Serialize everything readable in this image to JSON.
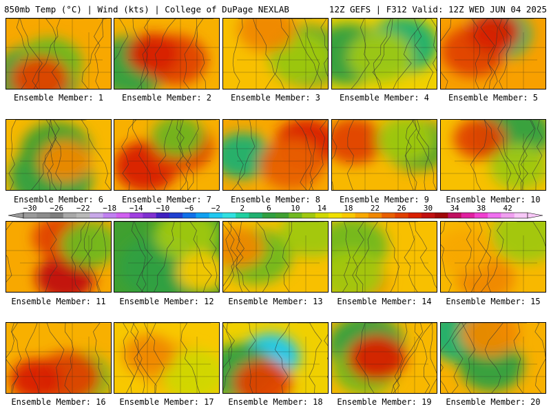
{
  "header": {
    "left": "850mb Temp (°C) | Wind (kts) | College of DuPage NEXLAB",
    "right": "12Z GEFS | F312 Valid: 12Z WED JUN 04 2025"
  },
  "colorbar": {
    "labels": [
      "-30",
      "-26",
      "-22",
      "-18",
      "-14",
      "-10",
      "-6",
      "-2",
      "2",
      "6",
      "10",
      "14",
      "18",
      "22",
      "26",
      "30",
      "34",
      "38",
      "42"
    ],
    "colors": [
      "#9a9a9a",
      "#8c8c8c",
      "#7e7e7e",
      "#a8a8a8",
      "#b8b8b8",
      "#c8a8e8",
      "#c080f0",
      "#d060f0",
      "#a040e0",
      "#8030d0",
      "#4020c0",
      "#2040d0",
      "#1070e8",
      "#10a0f0",
      "#20c8f0",
      "#30e0e0",
      "#20d0a0",
      "#20b070",
      "#30a040",
      "#40a030",
      "#70b820",
      "#a0c810",
      "#d0d800",
      "#f0e000",
      "#f8c800",
      "#f8a800",
      "#f08800",
      "#e86000",
      "#e04000",
      "#d82000",
      "#c01010",
      "#a00808",
      "#c01060",
      "#e020a0",
      "#f040d0",
      "#f070f0",
      "#f0a0f0",
      "#f8c8f8"
    ]
  },
  "panels": [
    {
      "caption": "Ensemble Member: 1",
      "base": "#f8a800",
      "blobs": [
        {
          "c": "#30a040",
          "r": 0.9
        },
        {
          "c": "#70b820",
          "r": 0.6
        },
        {
          "c": "#e04000",
          "r": 0.5
        }
      ]
    },
    {
      "caption": "Ensemble Member: 2",
      "base": "#f8b000",
      "blobs": [
        {
          "c": "#30a040",
          "r": 0.8
        },
        {
          "c": "#e04000",
          "r": 0.6
        },
        {
          "c": "#d82000",
          "r": 0.4
        }
      ]
    },
    {
      "caption": "Ensemble Member: 3",
      "base": "#f8c000",
      "blobs": [
        {
          "c": "#40a030",
          "r": 0.8
        },
        {
          "c": "#a0c810",
          "r": 0.6
        },
        {
          "c": "#f08800",
          "r": 0.5
        }
      ]
    },
    {
      "caption": "Ensemble Member: 4",
      "base": "#f0d000",
      "blobs": [
        {
          "c": "#20b070",
          "r": 0.7
        },
        {
          "c": "#30a040",
          "r": 0.8
        },
        {
          "c": "#a0c810",
          "r": 0.6
        }
      ]
    },
    {
      "caption": "Ensemble Member: 5",
      "base": "#f8a000",
      "blobs": [
        {
          "c": "#20b070",
          "r": 0.6
        },
        {
          "c": "#e04000",
          "r": 0.6
        },
        {
          "c": "#d82000",
          "r": 0.4
        }
      ]
    },
    {
      "caption": "Ensemble Member: 6",
      "base": "#f8b800",
      "blobs": [
        {
          "c": "#30a040",
          "r": 0.9
        },
        {
          "c": "#40a030",
          "r": 0.7
        },
        {
          "c": "#f08800",
          "r": 0.4
        }
      ]
    },
    {
      "caption": "Ensemble Member: 7",
      "base": "#f8b000",
      "blobs": [
        {
          "c": "#d82000",
          "r": 0.6
        },
        {
          "c": "#e04000",
          "r": 0.6
        },
        {
          "c": "#70b820",
          "r": 0.4
        }
      ]
    },
    {
      "caption": "Ensemble Member: 8",
      "base": "#f8a800",
      "blobs": [
        {
          "c": "#20b070",
          "r": 0.5
        },
        {
          "c": "#d82000",
          "r": 0.6
        },
        {
          "c": "#e86000",
          "r": 0.6
        }
      ]
    },
    {
      "caption": "Ensemble Member: 9",
      "base": "#f8b800",
      "blobs": [
        {
          "c": "#40a030",
          "r": 0.6
        },
        {
          "c": "#e04000",
          "r": 0.5
        },
        {
          "c": "#a0c810",
          "r": 0.5
        }
      ]
    },
    {
      "caption": "Ensemble Member: 10",
      "base": "#f8c000",
      "blobs": [
        {
          "c": "#30a040",
          "r": 0.8
        },
        {
          "c": "#e04000",
          "r": 0.4
        },
        {
          "c": "#a0c810",
          "r": 0.5
        }
      ]
    },
    {
      "caption": "Ensemble Member: 11",
      "base": "#f8a800",
      "blobs": [
        {
          "c": "#c01010",
          "r": 0.5
        },
        {
          "c": "#e04000",
          "r": 0.5
        },
        {
          "c": "#70b820",
          "r": 0.5
        }
      ]
    },
    {
      "caption": "Ensemble Member: 12",
      "base": "#40a030",
      "blobs": [
        {
          "c": "#30a040",
          "r": 0.9
        },
        {
          "c": "#a0c810",
          "r": 0.6
        },
        {
          "c": "#f8c800",
          "r": 0.4
        }
      ]
    },
    {
      "caption": "Ensemble Member: 13",
      "base": "#f8c000",
      "blobs": [
        {
          "c": "#70b820",
          "r": 0.7
        },
        {
          "c": "#a0c810",
          "r": 0.6
        },
        {
          "c": "#f08800",
          "r": 0.4
        }
      ]
    },
    {
      "caption": "Ensemble Member: 14",
      "base": "#f8c000",
      "blobs": [
        {
          "c": "#70b820",
          "r": 0.7
        },
        {
          "c": "#f08800",
          "r": 0.5
        },
        {
          "c": "#a0c810",
          "r": 0.6
        }
      ]
    },
    {
      "caption": "Ensemble Member: 15",
      "base": "#f8b800",
      "blobs": [
        {
          "c": "#a0c810",
          "r": 0.7
        },
        {
          "c": "#f08800",
          "r": 0.5
        },
        {
          "c": "#f8a800",
          "r": 0.5
        }
      ]
    },
    {
      "caption": "Ensemble Member: 16",
      "base": "#f8b000",
      "blobs": [
        {
          "c": "#70b820",
          "r": 0.6
        },
        {
          "c": "#e04000",
          "r": 0.6
        },
        {
          "c": "#d82000",
          "r": 0.4
        }
      ]
    },
    {
      "caption": "Ensemble Member: 17",
      "base": "#f8c800",
      "blobs": [
        {
          "c": "#f8a800",
          "r": 0.6
        },
        {
          "c": "#d0d800",
          "r": 0.6
        },
        {
          "c": "#f08800",
          "r": 0.4
        }
      ]
    },
    {
      "caption": "Ensemble Member: 18",
      "base": "#f0d000",
      "blobs": [
        {
          "c": "#20c8f0",
          "r": 0.5
        },
        {
          "c": "#30a040",
          "r": 0.7
        },
        {
          "c": "#e04000",
          "r": 0.5
        }
      ]
    },
    {
      "caption": "Ensemble Member: 19",
      "base": "#f8b800",
      "blobs": [
        {
          "c": "#30a040",
          "r": 0.8
        },
        {
          "c": "#70b820",
          "r": 0.6
        },
        {
          "c": "#d82000",
          "r": 0.5
        }
      ]
    },
    {
      "caption": "Ensemble Member: 20",
      "base": "#f8b000",
      "blobs": [
        {
          "c": "#20b070",
          "r": 0.7
        },
        {
          "c": "#30a040",
          "r": 0.6
        },
        {
          "c": "#f08800",
          "r": 0.5
        }
      ]
    }
  ]
}
